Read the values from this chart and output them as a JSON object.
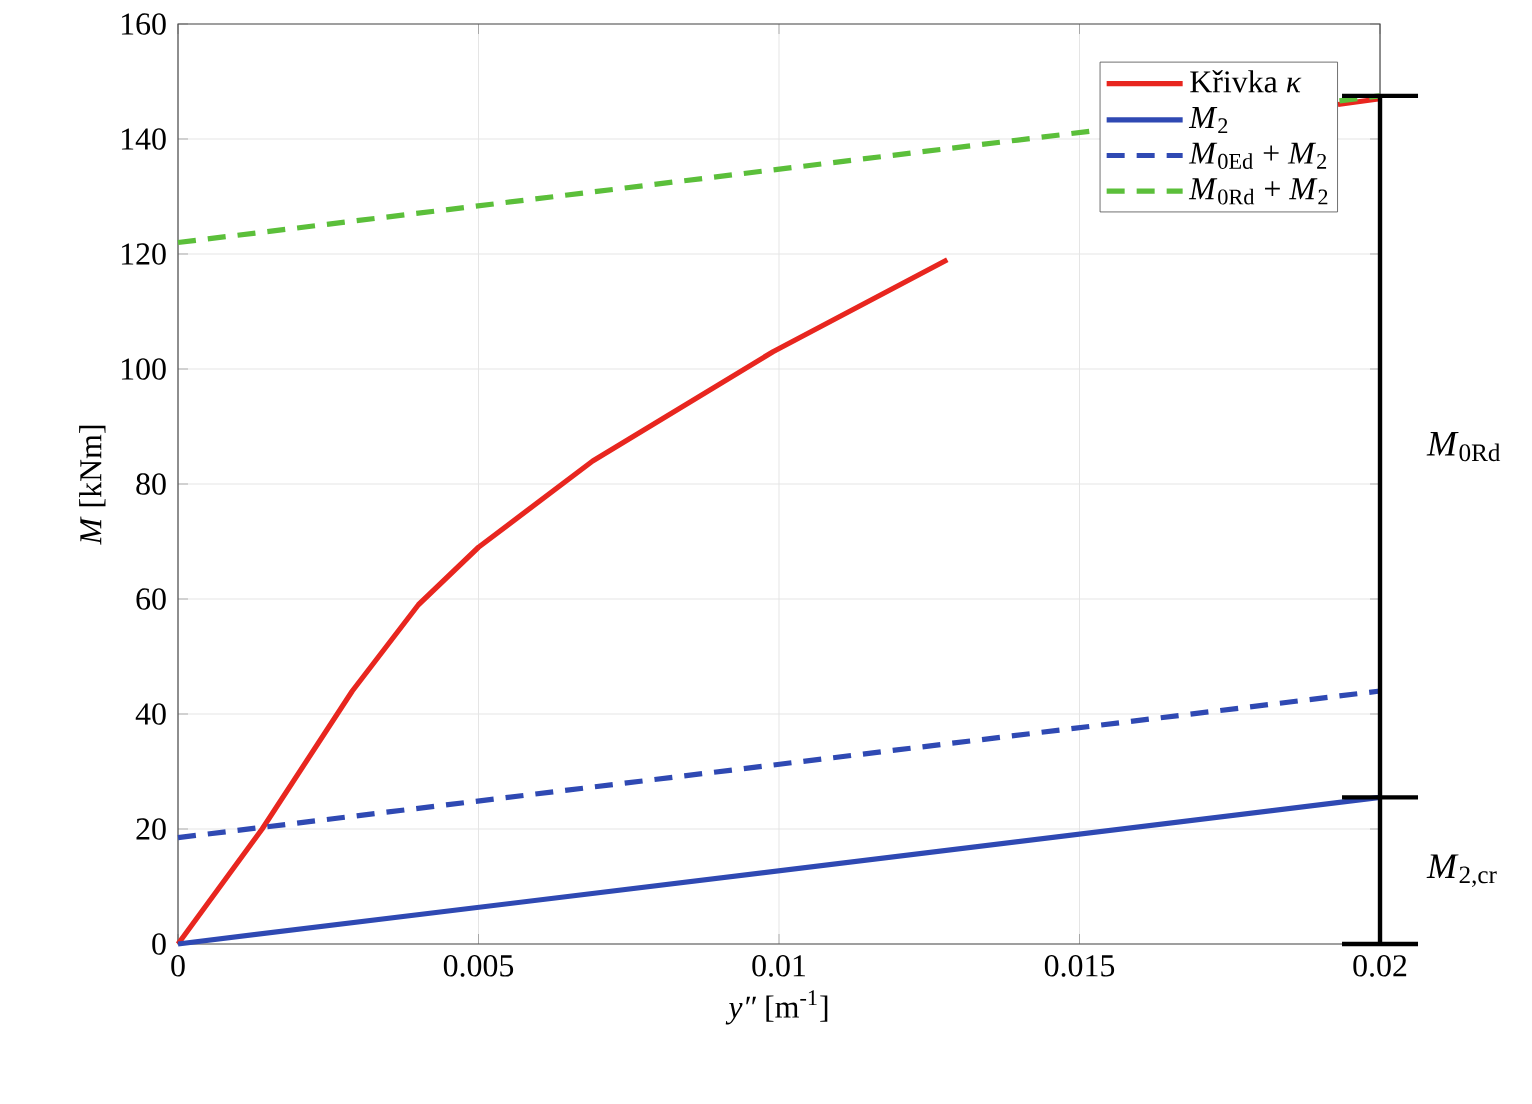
{
  "chart_data": {
    "type": "line",
    "xlabel": "*y″* [m$^{-1}$]",
    "ylabel": "*M* [kNm]",
    "series": [
      {
        "name": "Křivka *κ*",
        "color": "#e8261f",
        "line_style": "solid",
        "x": [
          0,
          0.0014,
          0.0029,
          0.004,
          0.005,
          0.0069,
          0.0099,
          0.0128,
          0.0165,
          0.0193,
          0.02
        ],
        "values": [
          0,
          20,
          44,
          59,
          69,
          84,
          103,
          119,
          null,
          146,
          147
        ]
      },
      {
        "name": "*M*$_{2}$",
        "color": "#2f49b3",
        "line_style": "solid",
        "x": [
          0,
          0.02
        ],
        "values": [
          0,
          25.5
        ]
      },
      {
        "name": "*M*$_{0Ed}$ + *M*$_{2}$",
        "color": "#2f49b3",
        "line_style": "dashed",
        "x": [
          0,
          0.02
        ],
        "values": [
          18.5,
          44
        ]
      },
      {
        "name": "*M*$_{0Rd}$ + *M*$_{2}$",
        "color": "#5bbf3a",
        "line_style": "dashed",
        "x": [
          0,
          0.02
        ],
        "values": [
          122,
          147.5
        ]
      }
    ],
    "annotations": [
      "*M*$_{0Rd}$",
      "*M*$_{2,cr}$"
    ],
    "xlim": [
      0,
      0.02
    ],
    "xticks": [
      0,
      0.005,
      0.01,
      0.015,
      0.02
    ],
    "ylim": [
      0,
      160
    ],
    "yticks": [
      0,
      20,
      40,
      60,
      80,
      100,
      120,
      140,
      160
    ],
    "grid": true,
    "legend": "top right"
  }
}
